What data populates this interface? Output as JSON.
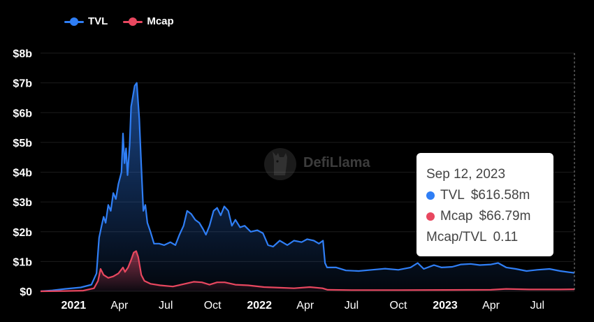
{
  "legend": {
    "tvl_label": "TVL",
    "mcap_label": "Mcap"
  },
  "watermark": {
    "text": "DefiLlama"
  },
  "tooltip": {
    "date": "Sep 12, 2023",
    "tvl_label": "TVL",
    "tvl_value": "$616.58m",
    "mcap_label": "Mcap",
    "mcap_value": "$66.79m",
    "ratio_label": "Mcap/TVL",
    "ratio_value": "0.11"
  },
  "colors": {
    "tvl": "#2f7ef5",
    "mcap": "#e8475f",
    "background": "#000000",
    "grid": "#1c1c1c",
    "axis_text": "#ffffff"
  },
  "chart_data": {
    "type": "area",
    "title": "",
    "xlabel": "",
    "ylabel": "",
    "ylim": [
      0,
      8
    ],
    "y_unit": "billion USD",
    "y_ticks": [
      "$0",
      "$1b",
      "$2b",
      "$3b",
      "$4b",
      "$5b",
      "$6b",
      "$7b",
      "$8b"
    ],
    "xlim": [
      "2020-10-28",
      "2023-09-12"
    ],
    "x_ticks": [
      {
        "date": "2021-01-01",
        "label": "2021",
        "bold": true
      },
      {
        "date": "2021-04-01",
        "label": "Apr"
      },
      {
        "date": "2021-07-01",
        "label": "Jul"
      },
      {
        "date": "2021-10-01",
        "label": "Oct"
      },
      {
        "date": "2022-01-01",
        "label": "2022",
        "bold": true
      },
      {
        "date": "2022-04-01",
        "label": "Apr"
      },
      {
        "date": "2022-07-01",
        "label": "Jul"
      },
      {
        "date": "2022-10-01",
        "label": "Oct"
      },
      {
        "date": "2023-01-01",
        "label": "2023",
        "bold": true
      },
      {
        "date": "2023-04-01",
        "label": "Apr"
      },
      {
        "date": "2023-07-01",
        "label": "Jul"
      }
    ],
    "grid": true,
    "legend_position": "top-left",
    "series": [
      {
        "name": "TVL",
        "color": "#2f7ef5",
        "points": [
          [
            "2020-10-28",
            0.0
          ],
          [
            "2020-11-20",
            0.03
          ],
          [
            "2020-12-15",
            0.08
          ],
          [
            "2021-01-15",
            0.13
          ],
          [
            "2021-02-05",
            0.22
          ],
          [
            "2021-02-15",
            0.6
          ],
          [
            "2021-02-20",
            1.8
          ],
          [
            "2021-02-25",
            2.2
          ],
          [
            "2021-03-01",
            2.5
          ],
          [
            "2021-03-05",
            2.3
          ],
          [
            "2021-03-10",
            2.9
          ],
          [
            "2021-03-15",
            2.7
          ],
          [
            "2021-03-20",
            3.3
          ],
          [
            "2021-03-25",
            3.1
          ],
          [
            "2021-03-30",
            3.6
          ],
          [
            "2021-04-05",
            4.0
          ],
          [
            "2021-04-08",
            5.3
          ],
          [
            "2021-04-11",
            4.3
          ],
          [
            "2021-04-14",
            4.8
          ],
          [
            "2021-04-17",
            3.9
          ],
          [
            "2021-04-21",
            4.9
          ],
          [
            "2021-04-24",
            6.2
          ],
          [
            "2021-04-27",
            6.5
          ],
          [
            "2021-05-01",
            6.9
          ],
          [
            "2021-05-05",
            7.0
          ],
          [
            "2021-05-10",
            5.8
          ],
          [
            "2021-05-14",
            4.2
          ],
          [
            "2021-05-18",
            2.7
          ],
          [
            "2021-05-22",
            2.9
          ],
          [
            "2021-05-26",
            2.3
          ],
          [
            "2021-06-01",
            2.0
          ],
          [
            "2021-06-08",
            1.6
          ],
          [
            "2021-06-18",
            1.6
          ],
          [
            "2021-06-28",
            1.55
          ],
          [
            "2021-07-10",
            1.65
          ],
          [
            "2021-07-20",
            1.55
          ],
          [
            "2021-07-28",
            1.9
          ],
          [
            "2021-08-05",
            2.2
          ],
          [
            "2021-08-12",
            2.7
          ],
          [
            "2021-08-20",
            2.6
          ],
          [
            "2021-08-28",
            2.4
          ],
          [
            "2021-09-05",
            2.3
          ],
          [
            "2021-09-12",
            2.1
          ],
          [
            "2021-09-18",
            1.9
          ],
          [
            "2021-09-25",
            2.2
          ],
          [
            "2021-10-03",
            2.7
          ],
          [
            "2021-10-10",
            2.8
          ],
          [
            "2021-10-17",
            2.55
          ],
          [
            "2021-10-24",
            2.85
          ],
          [
            "2021-11-01",
            2.7
          ],
          [
            "2021-11-08",
            2.2
          ],
          [
            "2021-11-15",
            2.4
          ],
          [
            "2021-11-24",
            2.15
          ],
          [
            "2021-12-03",
            2.2
          ],
          [
            "2021-12-15",
            2.0
          ],
          [
            "2021-12-28",
            2.05
          ],
          [
            "2022-01-08",
            1.95
          ],
          [
            "2022-01-18",
            1.55
          ],
          [
            "2022-01-28",
            1.5
          ],
          [
            "2022-02-10",
            1.7
          ],
          [
            "2022-02-25",
            1.55
          ],
          [
            "2022-03-10",
            1.7
          ],
          [
            "2022-03-25",
            1.65
          ],
          [
            "2022-04-05",
            1.75
          ],
          [
            "2022-04-18",
            1.7
          ],
          [
            "2022-04-28",
            1.6
          ],
          [
            "2022-05-06",
            1.7
          ],
          [
            "2022-05-10",
            0.95
          ],
          [
            "2022-05-14",
            0.8
          ],
          [
            "2022-06-01",
            0.8
          ],
          [
            "2022-06-20",
            0.7
          ],
          [
            "2022-07-15",
            0.68
          ],
          [
            "2022-08-10",
            0.72
          ],
          [
            "2022-09-05",
            0.76
          ],
          [
            "2022-10-01",
            0.72
          ],
          [
            "2022-10-25",
            0.8
          ],
          [
            "2022-11-08",
            0.95
          ],
          [
            "2022-11-20",
            0.75
          ],
          [
            "2022-12-10",
            0.88
          ],
          [
            "2022-12-25",
            0.8
          ],
          [
            "2023-01-15",
            0.82
          ],
          [
            "2023-02-01",
            0.9
          ],
          [
            "2023-02-20",
            0.92
          ],
          [
            "2023-03-10",
            0.88
          ],
          [
            "2023-04-01",
            0.9
          ],
          [
            "2023-04-15",
            0.95
          ],
          [
            "2023-05-01",
            0.8
          ],
          [
            "2023-05-20",
            0.75
          ],
          [
            "2023-06-10",
            0.68
          ],
          [
            "2023-07-01",
            0.72
          ],
          [
            "2023-07-25",
            0.75
          ],
          [
            "2023-08-15",
            0.68
          ],
          [
            "2023-09-01",
            0.64
          ],
          [
            "2023-09-12",
            0.62
          ]
        ]
      },
      {
        "name": "Mcap",
        "color": "#e8475f",
        "points": [
          [
            "2020-10-28",
            0.0
          ],
          [
            "2020-12-15",
            0.01
          ],
          [
            "2021-01-20",
            0.02
          ],
          [
            "2021-02-10",
            0.1
          ],
          [
            "2021-02-18",
            0.35
          ],
          [
            "2021-02-23",
            0.75
          ],
          [
            "2021-03-01",
            0.55
          ],
          [
            "2021-03-10",
            0.45
          ],
          [
            "2021-03-20",
            0.5
          ],
          [
            "2021-03-30",
            0.6
          ],
          [
            "2021-04-08",
            0.8
          ],
          [
            "2021-04-12",
            0.65
          ],
          [
            "2021-04-18",
            0.8
          ],
          [
            "2021-04-24",
            1.05
          ],
          [
            "2021-04-29",
            1.3
          ],
          [
            "2021-05-04",
            1.35
          ],
          [
            "2021-05-08",
            1.15
          ],
          [
            "2021-05-14",
            0.55
          ],
          [
            "2021-05-20",
            0.35
          ],
          [
            "2021-06-01",
            0.25
          ],
          [
            "2021-06-20",
            0.2
          ],
          [
            "2021-07-15",
            0.16
          ],
          [
            "2021-08-10",
            0.26
          ],
          [
            "2021-08-25",
            0.32
          ],
          [
            "2021-09-10",
            0.3
          ],
          [
            "2021-09-25",
            0.22
          ],
          [
            "2021-10-10",
            0.3
          ],
          [
            "2021-10-25",
            0.3
          ],
          [
            "2021-11-15",
            0.22
          ],
          [
            "2021-12-10",
            0.2
          ],
          [
            "2022-01-10",
            0.14
          ],
          [
            "2022-02-10",
            0.12
          ],
          [
            "2022-03-10",
            0.1
          ],
          [
            "2022-04-10",
            0.14
          ],
          [
            "2022-05-05",
            0.1
          ],
          [
            "2022-05-15",
            0.05
          ],
          [
            "2022-07-01",
            0.04
          ],
          [
            "2022-10-01",
            0.04
          ],
          [
            "2023-01-01",
            0.045
          ],
          [
            "2023-04-01",
            0.05
          ],
          [
            "2023-05-01",
            0.08
          ],
          [
            "2023-06-15",
            0.06
          ],
          [
            "2023-08-15",
            0.06
          ],
          [
            "2023-09-12",
            0.067
          ]
        ]
      }
    ],
    "highlight_date": "2023-09-12"
  }
}
